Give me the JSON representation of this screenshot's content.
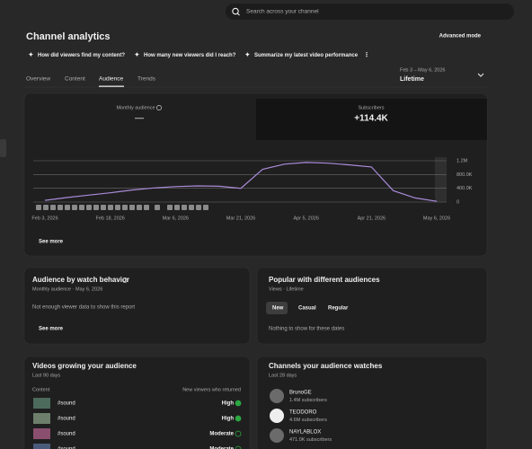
{
  "header": {
    "search_placeholder": "Search across your channel",
    "title": "Channel analytics",
    "advanced_mode": "Advanced mode"
  },
  "chips": [
    "How did viewers find my content?",
    "How many new viewers did I reach?",
    "Summarize my latest video performance"
  ],
  "tabs": [
    "Overview",
    "Content",
    "Audience",
    "Trends"
  ],
  "date_range": {
    "range": "Feb 3 – May 6, 2026",
    "label": "Lifetime"
  },
  "overview_card": {
    "metrics": [
      {
        "label": "Monthly audience",
        "value": "—"
      },
      {
        "label": "Subscribers",
        "value": "+114.4K"
      }
    ],
    "see_more": "See more"
  },
  "chart": {
    "type": "line",
    "categories": [
      "Feb 3, 2026",
      null,
      null,
      "Feb 18, 2026",
      null,
      null,
      "Mar 6, 2026",
      null,
      null,
      "Mar 21, 2026",
      null,
      null,
      "Apr 5, 2026",
      null,
      null,
      "Apr 21, 2026",
      null,
      null,
      "May 6, 2026"
    ],
    "values": [
      50000,
      130000,
      200000,
      270000,
      350000,
      410000,
      450000,
      470000,
      460000,
      400000,
      950000,
      1100000,
      1150000,
      1130000,
      1080000,
      1020000,
      330000,
      120000,
      20000
    ],
    "color": "#a98bd9",
    "ylim": [
      0,
      1200000
    ],
    "yticks": [
      0,
      {
        "value": 400000,
        "label": "400.0K"
      },
      {
        "value": 800000,
        "label": "800.0K"
      },
      {
        "value": 1200000,
        "label": "1.2M"
      }
    ],
    "grid": true
  },
  "watch_behavior": {
    "title": "Audience by watch behavior",
    "subtitle": "Monthly audience · May 6, 2026",
    "empty": "Not enough viewer data to show this report",
    "see_more": "See more"
  },
  "popular": {
    "title": "Popular with different audiences",
    "subtitle": "Views · Lifetime",
    "filters": [
      "New",
      "Casual",
      "Regular"
    ],
    "empty": "Nothing to show for these dates"
  },
  "videos_growing": {
    "title": "Videos growing your audience",
    "subtitle": "Last 90 days",
    "columns": [
      "Content",
      "New viewers who returned"
    ],
    "rows": [
      {
        "title": "#sound",
        "level": "High"
      },
      {
        "title": "#sound",
        "level": "High"
      },
      {
        "title": "#sound",
        "level": "Moderate"
      },
      {
        "title": "#sound",
        "level": "Moderate"
      }
    ]
  },
  "channels": {
    "title": "Channels your audience watches",
    "subtitle": "Last 28 days",
    "rows": [
      {
        "name": "BrunoGE",
        "subscribers": "1.4M subscribers"
      },
      {
        "name": "TEODORO",
        "subscribers": "4.6M subscribers"
      },
      {
        "name": "NAYLABLOX",
        "subscribers": "471.0K subscribers"
      }
    ]
  }
}
